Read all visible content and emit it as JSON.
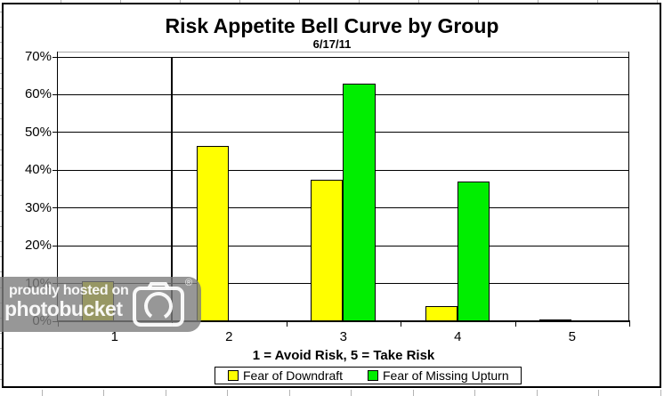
{
  "chart_data": {
    "type": "bar",
    "title": "Risk Appetite Bell Curve by Group",
    "subtitle": "6/17/11",
    "xlabel": "1 = Avoid Risk, 5 = Take Risk",
    "ylabel": "",
    "categories": [
      "1",
      "2",
      "3",
      "4",
      "5"
    ],
    "series": [
      {
        "name": "Fear of Downdraft",
        "color": "#FFFF00",
        "values": [
          10.5,
          46.5,
          37.5,
          4,
          0.5
        ]
      },
      {
        "name": "Fear of Missing Upturn",
        "color": "#00EE00",
        "values": [
          0,
          0,
          63,
          37,
          0
        ]
      }
    ],
    "ylim": [
      0,
      70
    ],
    "ytick_step": 10,
    "ytick_labels": [
      "0%",
      "10%",
      "20%",
      "30%",
      "40%",
      "50%",
      "60%",
      "70%"
    ],
    "grid": true,
    "gridline_color": "#000000",
    "legend_position": "bottom",
    "annotations": [
      {
        "type": "vline",
        "between_categories": [
          "1",
          "2"
        ]
      }
    ]
  },
  "watermark": {
    "line1": "proudly hosted on",
    "line2": "photobucket",
    "registered": "®"
  }
}
